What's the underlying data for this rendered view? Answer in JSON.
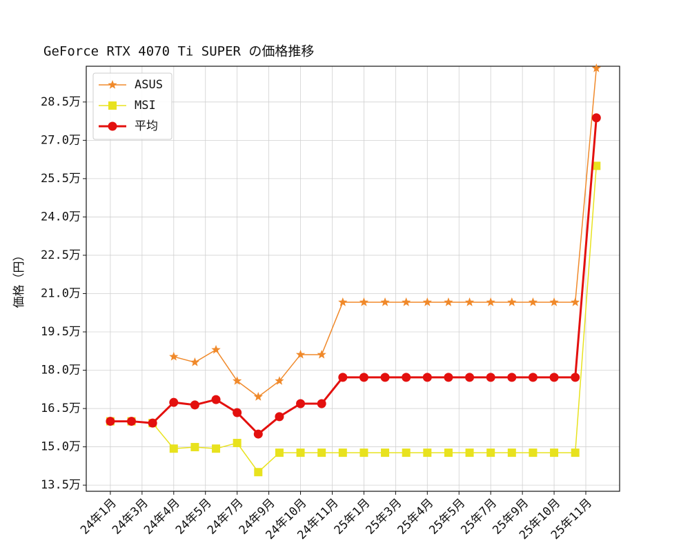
{
  "chart_data": {
    "type": "line",
    "title": "GeForce RTX 4070 Ti SUPER の価格推移",
    "ylabel": "価格（円）",
    "x": [
      0,
      1,
      2,
      3,
      4,
      5,
      6,
      7,
      8,
      9,
      10,
      11,
      12,
      13,
      14,
      15,
      16,
      17,
      18,
      19,
      20,
      21,
      22,
      23
    ],
    "xlim": [
      -1.14,
      24.1
    ],
    "xticks": [
      {
        "value": 0,
        "label": "24年1月"
      },
      {
        "value": 1.5,
        "label": "24年3月"
      },
      {
        "value": 3,
        "label": "24年4月"
      },
      {
        "value": 4.5,
        "label": "24年5月"
      },
      {
        "value": 6,
        "label": "24年7月"
      },
      {
        "value": 7.5,
        "label": "24年9月"
      },
      {
        "value": 9,
        "label": "24年10月"
      },
      {
        "value": 10.5,
        "label": "24年11月"
      },
      {
        "value": 12,
        "label": "25年1月"
      },
      {
        "value": 13.5,
        "label": "25年3月"
      },
      {
        "value": 15,
        "label": "25年4月"
      },
      {
        "value": 16.5,
        "label": "25年5月"
      },
      {
        "value": 18,
        "label": "25年7月"
      },
      {
        "value": 19.5,
        "label": "25年9月"
      },
      {
        "value": 21,
        "label": "25年10月"
      },
      {
        "value": 22.5,
        "label": "25年11月"
      }
    ],
    "ylim": [
      13.26,
      29.9
    ],
    "yticks": [
      {
        "value": 13.5,
        "label": "13.5万"
      },
      {
        "value": 15,
        "label": "15.0万"
      },
      {
        "value": 16.5,
        "label": "16.5万"
      },
      {
        "value": 18,
        "label": "18.0万"
      },
      {
        "value": 19.5,
        "label": "19.5万"
      },
      {
        "value": 21,
        "label": "21.0万"
      },
      {
        "value": 22.5,
        "label": "22.5万"
      },
      {
        "value": 24,
        "label": "24.0万"
      },
      {
        "value": 25.5,
        "label": "25.5万"
      },
      {
        "value": 27,
        "label": "27.0万"
      },
      {
        "value": 28.5,
        "label": "28.5万"
      }
    ],
    "grid": true,
    "legend": "upper left",
    "series": [
      {
        "name": "ASUS",
        "color": "#f0892a",
        "marker": "star",
        "width": 1.5,
        "values": [
          null,
          null,
          null,
          18.53,
          18.31,
          18.8,
          17.58,
          16.96,
          17.58,
          18.61,
          18.61,
          20.66,
          20.66,
          20.66,
          20.66,
          20.66,
          20.66,
          20.66,
          20.66,
          20.66,
          20.66,
          20.66,
          20.66,
          29.82
        ]
      },
      {
        "name": "MSI",
        "color": "#e8e21e",
        "marker": "square",
        "width": 1.5,
        "values": [
          16.0,
          16.0,
          15.93,
          14.93,
          14.99,
          14.93,
          15.15,
          14.01,
          14.77,
          14.77,
          14.77,
          14.77,
          14.77,
          14.77,
          14.77,
          14.77,
          14.77,
          14.77,
          14.77,
          14.77,
          14.77,
          14.77,
          14.77,
          26.0
        ]
      },
      {
        "name": "平均",
        "color": "#e3100e",
        "marker": "circle",
        "width": 3,
        "values": [
          16.0,
          16.0,
          15.93,
          16.74,
          16.64,
          16.85,
          16.34,
          15.5,
          16.18,
          16.69,
          16.69,
          17.72,
          17.72,
          17.72,
          17.72,
          17.72,
          17.72,
          17.72,
          17.72,
          17.72,
          17.72,
          17.72,
          17.72,
          27.88
        ]
      }
    ]
  }
}
